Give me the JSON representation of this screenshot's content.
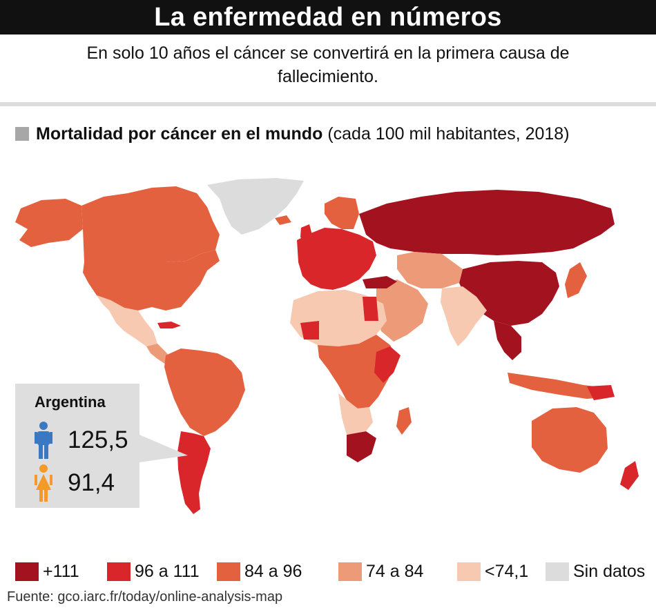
{
  "header": {
    "title": "La enfermedad en números",
    "subtitle": "En solo 10 años el cáncer se convertirá en la primera causa de fallecimiento."
  },
  "section": {
    "title_bold": "Mortalidad por cáncer en el mundo",
    "title_normal": "(cada 100 mil habitantes, 2018)"
  },
  "callout": {
    "country": "Argentina",
    "male_value": "125,5",
    "female_value": "91,4",
    "male_icon": "male-person-icon",
    "female_icon": "female-person-icon",
    "male_color": "#3a78c2",
    "female_color": "#f39a2b"
  },
  "legend": [
    {
      "label": "+111",
      "color": "#a3131f"
    },
    {
      "label": "96 a 111",
      "color": "#d8262a"
    },
    {
      "label": "84 a 96",
      "color": "#e4613f"
    },
    {
      "label": "74 a 84",
      "color": "#ed9a79"
    },
    {
      "label": "<74,1",
      "color": "#f7c9b0"
    },
    {
      "label": "Sin datos",
      "color": "#dcdcdc"
    }
  ],
  "source": "Fuente: gco.iarc.fr/today/online-analysis-map"
}
